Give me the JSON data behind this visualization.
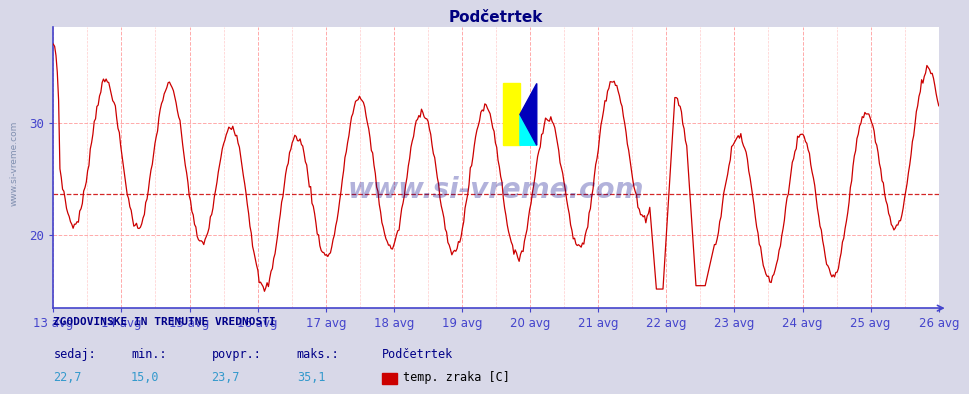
{
  "title": "Podčetrtek",
  "title_color": "#000080",
  "title_fontsize": 11,
  "bg_color": "#d8d8e8",
  "plot_bg_color": "#ffffff",
  "line_color": "#cc0000",
  "avg_line_color": "#cc0000",
  "avg_value": 23.7,
  "y_min": 15.0,
  "y_max": 38.5,
  "y_ticks": [
    20,
    30
  ],
  "x_labels": [
    "13 avg",
    "14 avg",
    "15 avg",
    "16 avg",
    "17 avg",
    "18 avg",
    "19 avg",
    "20 avg",
    "21 avg",
    "22 avg",
    "23 avg",
    "24 avg",
    "25 avg",
    "26 avg"
  ],
  "grid_color": "#ffaaaa",
  "axis_color": "#4444cc",
  "watermark_text": "www.si-vreme.com",
  "footer_title": "ZGODOVINSKE IN TRENUTNE VREDNOSTI",
  "footer_labels": [
    "sedaj:",
    "min.:",
    "povpr.:",
    "maks.:"
  ],
  "footer_values": [
    "22,7",
    "15,0",
    "23,7",
    "35,1"
  ],
  "footer_legend_label": "temp. zraka [C]",
  "footer_legend_station": "Podčetrtek",
  "footer_legend_color": "#cc0000",
  "num_points": 672,
  "tick_color": "#4488cc",
  "tick_fontsize": 9,
  "left_watermark": "www.si-vreme.com"
}
